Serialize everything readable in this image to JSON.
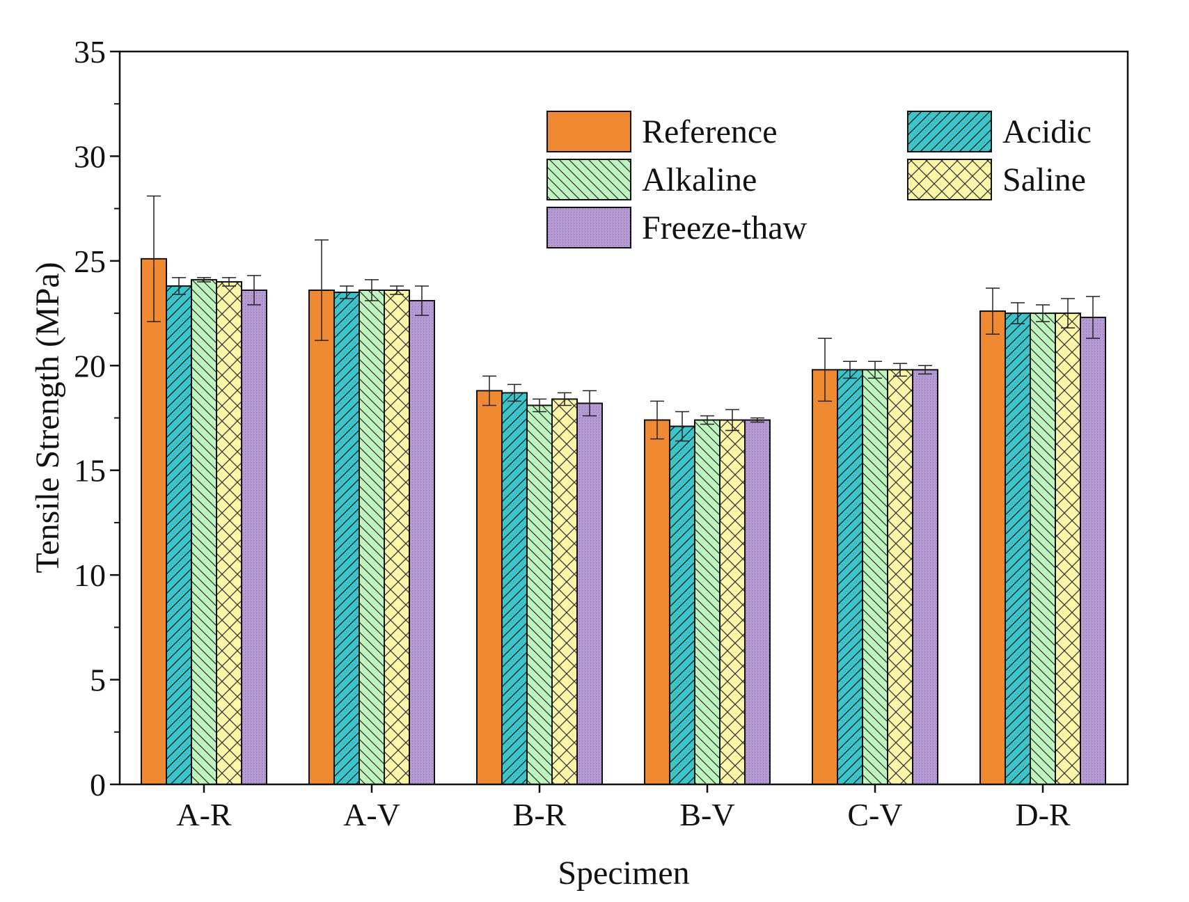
{
  "chart_data": {
    "type": "bar",
    "xlabel": "Specimen",
    "ylabel": "Tensile Strength (MPa)",
    "ylim": [
      0,
      35
    ],
    "yticks": [
      0,
      5,
      10,
      15,
      20,
      25,
      30,
      35
    ],
    "legend_placement": "top-right",
    "categories": [
      "A-R",
      "A-V",
      "B-R",
      "B-V",
      "C-V",
      "D-R"
    ],
    "series": [
      {
        "name": "Reference",
        "color": "#f08a32",
        "pattern": "solid",
        "values": [
          25.1,
          23.6,
          18.8,
          17.4,
          19.8,
          22.6
        ],
        "errors": [
          3.0,
          2.4,
          0.7,
          0.9,
          1.5,
          1.1
        ]
      },
      {
        "name": "Acidic",
        "color": "#3cc4c8",
        "pattern": "forward-diagonal",
        "values": [
          23.8,
          23.5,
          18.7,
          17.1,
          19.8,
          22.5
        ],
        "errors": [
          0.4,
          0.3,
          0.4,
          0.7,
          0.4,
          0.5
        ]
      },
      {
        "name": "Alkaline",
        "color": "#bff5bf",
        "pattern": "backward-diagonal",
        "values": [
          24.1,
          23.6,
          18.1,
          17.4,
          19.8,
          22.5
        ],
        "errors": [
          0.1,
          0.5,
          0.3,
          0.2,
          0.4,
          0.4
        ]
      },
      {
        "name": "Saline",
        "color": "#fbf6a8",
        "pattern": "crosshatch",
        "values": [
          24.0,
          23.6,
          18.4,
          17.4,
          19.8,
          22.5
        ],
        "errors": [
          0.2,
          0.2,
          0.3,
          0.5,
          0.3,
          0.7
        ]
      },
      {
        "name": "Freeze-thaw",
        "color": "#b69bd4",
        "pattern": "dots",
        "values": [
          23.6,
          23.1,
          18.2,
          17.4,
          19.8,
          22.3
        ],
        "errors": [
          0.7,
          0.7,
          0.6,
          0.1,
          0.2,
          1.0
        ]
      }
    ]
  }
}
